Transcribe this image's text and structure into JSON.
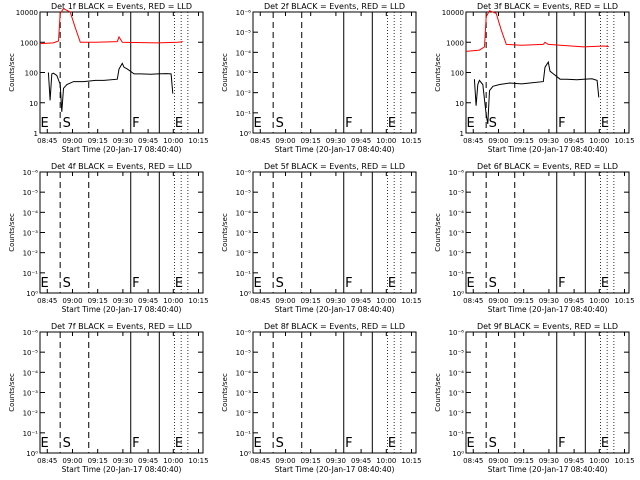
{
  "window_size": "640x480",
  "colors": {
    "events": "#000000",
    "lld": "#ff0000",
    "axes": "#000000"
  },
  "chart_data": [
    {
      "title": "Det 1f BLACK = Events, RED = LLD",
      "xlabel": "Start Time (20-Jan-17 08:40:40)",
      "ylabel": "Counts/sec",
      "yticks": [
        "1",
        "10",
        "100",
        "1000",
        "10000"
      ],
      "xticks": [
        "08:45",
        "09:00",
        "09:15",
        "09:30",
        "09:45",
        "10:00",
        "10:15"
      ],
      "markers": [
        "E",
        "S",
        "F",
        "E"
      ],
      "type": "line",
      "x_units": "minutes since 08:40:40",
      "red": [
        [
          0,
          900
        ],
        [
          8,
          950
        ],
        [
          11,
          1100
        ],
        [
          12,
          9000
        ],
        [
          14,
          13000
        ],
        [
          18,
          10000
        ],
        [
          21,
          3000
        ],
        [
          24,
          1000
        ],
        [
          33,
          1000
        ],
        [
          46,
          1050
        ],
        [
          47,
          1500
        ],
        [
          49,
          1000
        ],
        [
          70,
          950
        ],
        [
          82,
          1000
        ],
        [
          85,
          1050
        ]
      ],
      "black": [
        [
          5,
          100
        ],
        [
          6,
          12
        ],
        [
          7,
          90
        ],
        [
          8,
          95
        ],
        [
          10,
          80
        ],
        [
          12,
          40
        ],
        [
          13,
          5
        ],
        [
          14,
          30
        ],
        [
          16,
          40
        ],
        [
          20,
          50
        ],
        [
          26,
          50
        ],
        [
          33,
          55
        ],
        [
          38,
          55
        ],
        [
          46,
          60
        ],
        [
          47,
          130
        ],
        [
          49,
          200
        ],
        [
          50,
          150
        ],
        [
          52,
          130
        ],
        [
          56,
          90
        ],
        [
          60,
          90
        ],
        [
          66,
          88
        ],
        [
          70,
          90
        ],
        [
          75,
          92
        ],
        [
          78,
          90
        ],
        [
          79,
          20
        ]
      ]
    },
    {
      "title": "Det 2f BLACK = Events, RED = LLD",
      "xlabel": "Start Time (20-Jan-17 08:40:40)",
      "ylabel": "Counts/sec",
      "yticks": [
        "10⁰",
        "10⁻¹",
        "10⁻²",
        "10⁻³",
        "10⁻⁴",
        "10⁻⁵",
        "10⁻⁶"
      ],
      "xticks": [
        "08:45",
        "09:00",
        "09:15",
        "09:30",
        "09:45",
        "10:00",
        "10:15"
      ],
      "markers": [
        "E",
        "S",
        "F",
        "E"
      ],
      "type": "line",
      "red": [],
      "black": []
    },
    {
      "title": "Det 3f BLACK = Events, RED = LLD",
      "xlabel": "Start Time (20-Jan-17 08:40:40)",
      "ylabel": "Counts/sec",
      "yticks": [
        "1",
        "10",
        "100",
        "1000",
        "10000"
      ],
      "xticks": [
        "08:45",
        "09:00",
        "09:15",
        "09:30",
        "09:45",
        "10:00",
        "10:15"
      ],
      "markers": [
        "E",
        "S",
        "F",
        "E"
      ],
      "type": "line",
      "x_units": "minutes since 08:40:40",
      "red": [
        [
          0,
          500
        ],
        [
          8,
          550
        ],
        [
          11,
          700
        ],
        [
          12,
          7000
        ],
        [
          14,
          11000
        ],
        [
          18,
          9000
        ],
        [
          21,
          2500
        ],
        [
          24,
          850
        ],
        [
          33,
          800
        ],
        [
          46,
          850
        ],
        [
          47,
          1000
        ],
        [
          49,
          850
        ],
        [
          70,
          700
        ],
        [
          82,
          750
        ],
        [
          85,
          720
        ]
      ],
      "black": [
        [
          5,
          60
        ],
        [
          6,
          8
        ],
        [
          7,
          40
        ],
        [
          8,
          55
        ],
        [
          10,
          40
        ],
        [
          12,
          4
        ],
        [
          13,
          2
        ],
        [
          14,
          25
        ],
        [
          16,
          35
        ],
        [
          20,
          40
        ],
        [
          26,
          45
        ],
        [
          33,
          42
        ],
        [
          38,
          45
        ],
        [
          46,
          50
        ],
        [
          47,
          150
        ],
        [
          49,
          220
        ],
        [
          50,
          110
        ],
        [
          52,
          90
        ],
        [
          56,
          60
        ],
        [
          60,
          60
        ],
        [
          66,
          58
        ],
        [
          70,
          60
        ],
        [
          75,
          62
        ],
        [
          78,
          55
        ],
        [
          79,
          15
        ]
      ]
    },
    {
      "title": "Det 4f BLACK = Events, RED = LLD",
      "xlabel": "Start Time (20-Jan-17 08:40:40)",
      "ylabel": "Counts/sec",
      "yticks": [
        "10⁰",
        "10⁻¹",
        "10⁻²",
        "10⁻³",
        "10⁻⁴",
        "10⁻⁵",
        "10⁻⁶"
      ],
      "xticks": [
        "08:45",
        "09:00",
        "09:15",
        "09:30",
        "09:45",
        "10:00",
        "10:15"
      ],
      "markers": [
        "E",
        "S",
        "F",
        "E"
      ],
      "type": "line",
      "red": [],
      "black": []
    },
    {
      "title": "Det 5f BLACK = Events, RED = LLD",
      "xlabel": "Start Time (20-Jan-17 08:40:40)",
      "ylabel": "Counts/sec",
      "yticks": [
        "10⁰",
        "10⁻¹",
        "10⁻²",
        "10⁻³",
        "10⁻⁴",
        "10⁻⁵",
        "10⁻⁶"
      ],
      "xticks": [
        "08:45",
        "09:00",
        "09:15",
        "09:30",
        "09:45",
        "10:00",
        "10:15"
      ],
      "markers": [
        "E",
        "S",
        "F",
        "E"
      ],
      "type": "line",
      "red": [],
      "black": []
    },
    {
      "title": "Det 6f BLACK = Events, RED = LLD",
      "xlabel": "Start Time (20-Jan-17 08:40:40)",
      "ylabel": "Counts/sec",
      "yticks": [
        "10⁰",
        "10⁻¹",
        "10⁻²",
        "10⁻³",
        "10⁻⁴",
        "10⁻⁵",
        "10⁻⁶"
      ],
      "xticks": [
        "08:45",
        "09:00",
        "09:15",
        "09:30",
        "09:45",
        "10:00",
        "10:15"
      ],
      "markers": [
        "E",
        "S",
        "F",
        "E"
      ],
      "type": "line",
      "red": [],
      "black": []
    },
    {
      "title": "Det 7f BLACK = Events, RED = LLD",
      "xlabel": "Start Time (20-Jan-17 08:40:40)",
      "ylabel": "Counts/sec",
      "yticks": [
        "10⁰",
        "10⁻¹",
        "10⁻²",
        "10⁻³",
        "10⁻⁴",
        "10⁻⁵",
        "10⁻⁶"
      ],
      "xticks": [
        "08:45",
        "09:00",
        "09:15",
        "09:30",
        "09:45",
        "10:00",
        "10:15"
      ],
      "markers": [
        "E",
        "S",
        "F",
        "E"
      ],
      "type": "line",
      "red": [],
      "black": []
    },
    {
      "title": "Det 8f BLACK = Events, RED = LLD",
      "xlabel": "Start Time (20-Jan-17 08:40:40)",
      "ylabel": "Counts/sec",
      "yticks": [
        "10⁰",
        "10⁻¹",
        "10⁻²",
        "10⁻³",
        "10⁻⁴",
        "10⁻⁵",
        "10⁻⁶"
      ],
      "xticks": [
        "08:45",
        "09:00",
        "09:15",
        "09:30",
        "09:45",
        "10:00",
        "10:15"
      ],
      "markers": [
        "E",
        "S",
        "F",
        "E"
      ],
      "type": "line",
      "red": [],
      "black": []
    },
    {
      "title": "Det 9f BLACK = Events, RED = LLD",
      "xlabel": "Start Time (20-Jan-17 08:40:40)",
      "ylabel": "Counts/sec",
      "yticks": [
        "10⁰",
        "10⁻¹",
        "10⁻²",
        "10⁻³",
        "10⁻⁴",
        "10⁻⁵",
        "10⁻⁶"
      ],
      "xticks": [
        "08:45",
        "09:00",
        "09:15",
        "09:30",
        "09:45",
        "10:00",
        "10:15"
      ],
      "markers": [
        "E",
        "S",
        "F",
        "E"
      ],
      "type": "line",
      "red": [],
      "black": []
    }
  ]
}
